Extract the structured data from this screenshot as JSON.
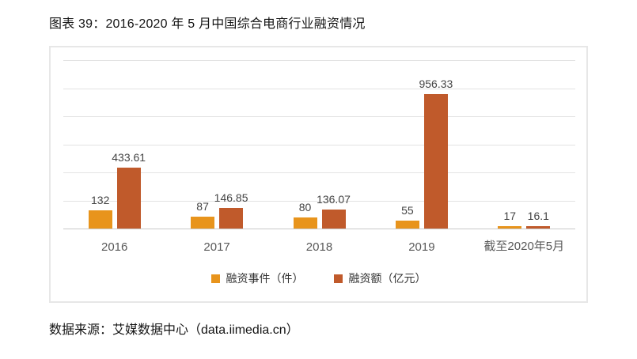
{
  "page": {
    "title": "图表 39：2016-2020 年 5 月中国综合电商行业融资情况",
    "source": "数据来源：艾媒数据中心（data.iimedia.cn）"
  },
  "chart_data": {
    "type": "bar",
    "title": "2016-2020 年 5 月中国综合电商行业融资情况",
    "categories": [
      "2016",
      "2017",
      "2018",
      "2019",
      "截至2020年5月"
    ],
    "series": [
      {
        "name": "融资事件（件）",
        "color": "#E8941C",
        "values": [
          132,
          87,
          80,
          55,
          17
        ],
        "labels": [
          "132",
          "87",
          "80",
          "55",
          "17"
        ]
      },
      {
        "name": "融资额（亿元）",
        "color": "#C05A2B",
        "values": [
          433.61,
          146.85,
          136.07,
          956.33,
          16.1
        ],
        "labels": [
          "433.61",
          "146.85",
          "136.07",
          "956.33",
          "16.1"
        ]
      }
    ],
    "xlabel": "",
    "ylabel": "",
    "ylim": [
      0,
      1200
    ],
    "grid_step": 200,
    "grid": true,
    "axis_tick_labels_visible": false,
    "data_labels_visible": true,
    "legend_position": "bottom-center",
    "colors": {
      "gridline": "#e3e3e3",
      "axisline": "#c9c9c9",
      "value_label": "#444444",
      "category_label": "#595959",
      "chart_border": "#e7e7e7"
    }
  }
}
